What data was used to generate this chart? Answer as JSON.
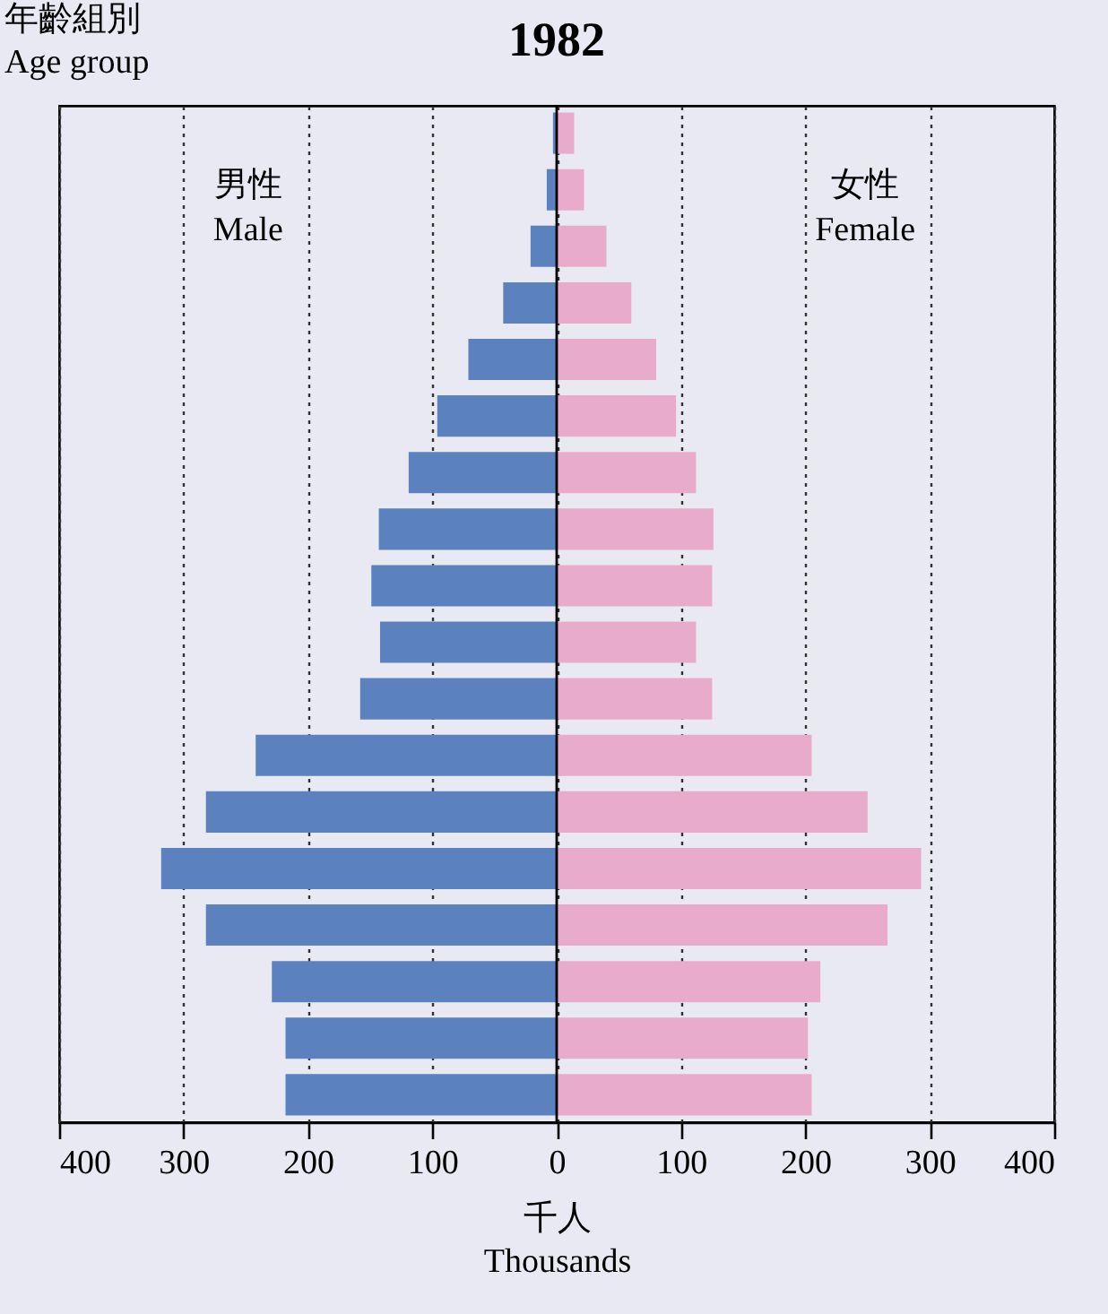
{
  "chart_data": {
    "type": "bar",
    "orientation": "horizontal",
    "title": "1982",
    "ylabel": "年齡組別\nAge group",
    "xlabel": "千人\nThousands",
    "stacked": true,
    "annotations": [
      "男性\nMale",
      "女性\nFemale"
    ],
    "categories": [
      null,
      null,
      null,
      null,
      null,
      null,
      null,
      null,
      null,
      null,
      null,
      null,
      null,
      null,
      null,
      null,
      null,
      null
    ],
    "series": [
      {
        "color": "#5b82be",
        "values": [
          -3,
          -8,
          -21,
          -43,
          -71,
          -96,
          -119,
          -143,
          -149,
          -142,
          -158,
          -242,
          -282,
          -318,
          -282,
          -229,
          -218,
          -218
        ]
      },
      {
        "color": "#e9abcb",
        "values": [
          14,
          22,
          40,
          60,
          80,
          96,
          112,
          126,
          125,
          112,
          125,
          205,
          250,
          293,
          266,
          212,
          202,
          205
        ]
      }
    ],
    "xlim": [
      -400,
      400
    ],
    "xticks": [
      {
        "value": -400,
        "label": "400"
      },
      {
        "value": -300,
        "label": "300"
      },
      {
        "value": -200,
        "label": "200"
      },
      {
        "value": -100,
        "label": "100"
      },
      0,
      100,
      200,
      300,
      400
    ],
    "grid": "x",
    "tick_labels": "x",
    "ref_lines": [
      {
        "axis": "x",
        "value": 0,
        "color": "#000000",
        "line_style": "solid"
      }
    ]
  }
}
